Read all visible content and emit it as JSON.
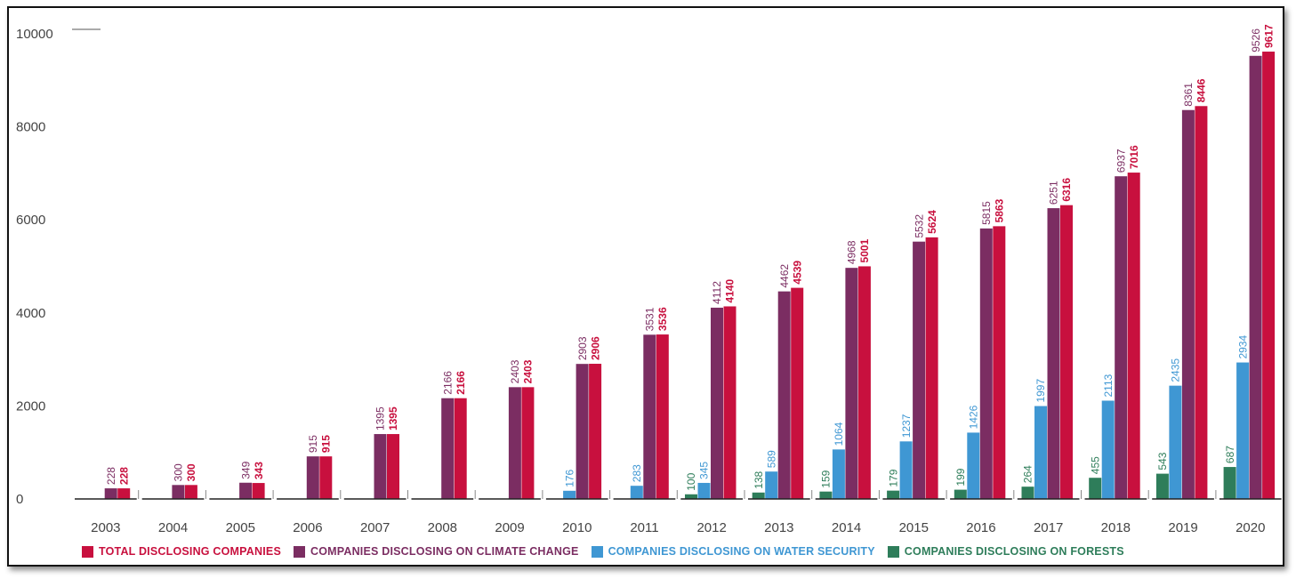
{
  "chart_data": {
    "type": "bar",
    "categories": [
      "2003",
      "2004",
      "2005",
      "2006",
      "2007",
      "2008",
      "2009",
      "2010",
      "2011",
      "2012",
      "2013",
      "2014",
      "2015",
      "2016",
      "2017",
      "2018",
      "2019",
      "2020"
    ],
    "yticks": [
      0,
      2000,
      4000,
      6000,
      8000,
      10000
    ],
    "ylim": [
      0,
      10000
    ],
    "legend_position": "bottom",
    "series": [
      {
        "name": "COMPANIES DISCLOSING ON FORESTS",
        "color": "#2e7d5a",
        "values": [
          null,
          null,
          null,
          null,
          null,
          null,
          null,
          null,
          null,
          100,
          138,
          159,
          179,
          199,
          264,
          455,
          543,
          687
        ]
      },
      {
        "name": "COMPANIES DISCLOSING ON WATER SECURITY",
        "color": "#3f97d3",
        "values": [
          null,
          null,
          null,
          null,
          null,
          null,
          null,
          176,
          283,
          345,
          589,
          1064,
          1237,
          1426,
          1997,
          2113,
          2435,
          2934
        ]
      },
      {
        "name": "COMPANIES DISCLOSING ON CLIMATE CHANGE",
        "color": "#7b2d62",
        "values": [
          228,
          300,
          349,
          915,
          1395,
          2166,
          2403,
          2903,
          3531,
          4112,
          4462,
          4968,
          5532,
          5815,
          6251,
          6937,
          8361,
          9526
        ]
      },
      {
        "name": "TOTAL DISCLOSING COMPANIES",
        "color": "#c8103e",
        "values": [
          228,
          300,
          343,
          915,
          1395,
          2166,
          2403,
          2906,
          3536,
          4140,
          4539,
          5001,
          5624,
          5863,
          6316,
          7016,
          8446,
          9617
        ]
      }
    ],
    "legend_order": [
      3,
      2,
      1,
      0
    ]
  }
}
